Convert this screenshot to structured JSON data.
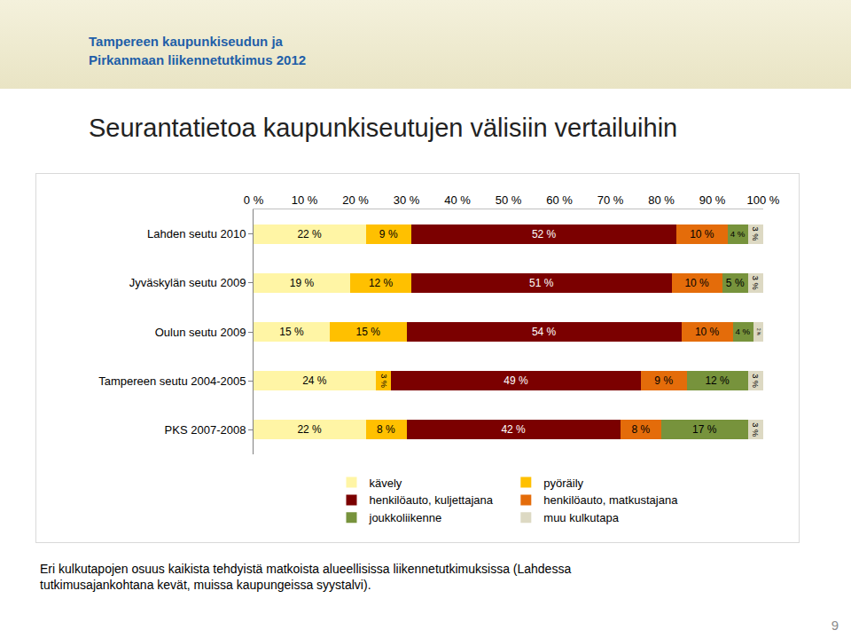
{
  "header": [
    "Tampereen kaupunkiseudun ja",
    "Pirkanmaan liikennetutkimus 2012"
  ],
  "chart_data": {
    "type": "bar",
    "title": "Seurantatietoa kaupunkiseutujen välisiin vertailuihin",
    "orientation": "horizontal",
    "stacked": true,
    "data_labels": true,
    "grid": false,
    "legend": "bottom",
    "categories": [
      "Lahden seutu 2010",
      "Jyväskylän seutu 2009",
      "Oulun seutu 2009",
      "Tampereen seutu 2004-2005",
      "PKS 2007-2008"
    ],
    "xlim": [
      0,
      100
    ],
    "xticks": [
      {
        "value": 0,
        "label": "0 %"
      },
      {
        "value": 10,
        "label": "10 %"
      },
      {
        "value": 20,
        "label": "20 %"
      },
      {
        "value": 30,
        "label": "30 %"
      },
      {
        "value": 40,
        "label": "40 %"
      },
      {
        "value": 50,
        "label": "50 %"
      },
      {
        "value": 60,
        "label": "60 %"
      },
      {
        "value": 70,
        "label": "70 %"
      },
      {
        "value": 80,
        "label": "80 %"
      },
      {
        "value": 90,
        "label": "90 %"
      },
      {
        "value": 100,
        "label": "100 %"
      }
    ],
    "series": [
      {
        "name": "kävely",
        "color": "#fff5a5",
        "values": [
          22,
          19,
          15,
          24,
          22
        ],
        "value_labels": [
          "22 %",
          "19 %",
          "15 %",
          "24 %",
          "22 %"
        ]
      },
      {
        "name": "pyöräily",
        "color": "#ffc000",
        "values": [
          9,
          12,
          15,
          3,
          8
        ],
        "value_labels": [
          "9 %",
          "12 %",
          "15 %",
          "3 %",
          "8 %"
        ]
      },
      {
        "name": "henkilöauto, kuljettajana",
        "color": "#7b0000",
        "values": [
          52,
          51,
          54,
          49,
          42
        ],
        "value_labels": [
          "52 %",
          "51 %",
          "54 %",
          "49 %",
          "42 %"
        ]
      },
      {
        "name": "henkilöauto, matkustajana",
        "color": "#e46c0a",
        "values": [
          10,
          10,
          10,
          9,
          8
        ],
        "value_labels": [
          "10 %",
          "10 %",
          "10 %",
          "9 %",
          "8 %"
        ]
      },
      {
        "name": "joukkoliikenne",
        "color": "#77933c",
        "values": [
          4,
          5,
          4,
          12,
          17
        ],
        "value_labels": [
          "4 %",
          "5 %",
          "4 %",
          "12 %",
          "17 %"
        ]
      },
      {
        "name": "muu kulkutapa",
        "color": "#ddd9c3",
        "values": [
          3,
          3,
          2,
          3,
          3
        ],
        "value_labels": [
          "3 %",
          "3 %",
          "2 %",
          "3 %",
          "3 %"
        ]
      }
    ]
  },
  "caption": "Eri kulkutapojen osuus kaikista tehdyistä matkoista alueellisissa liikennetutkimuksissa (Lahdessa tutkimusajankohtana kevät, muissa kaupungeissa syystalvi).",
  "page_number": "9"
}
